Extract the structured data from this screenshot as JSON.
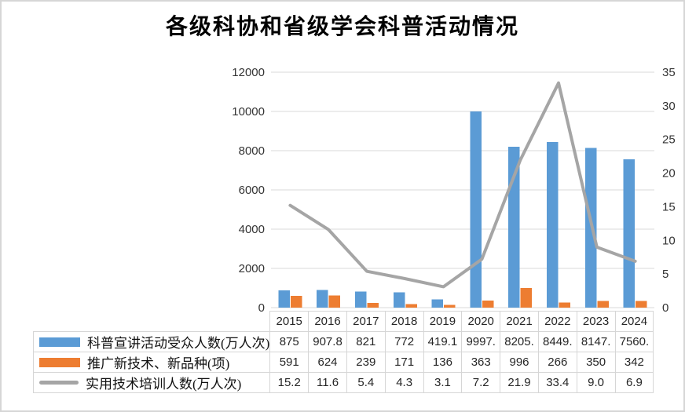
{
  "title": "各级科协和省级学会科普活动情况",
  "colors": {
    "bar1": "#5B9BD5",
    "bar2": "#ED7D31",
    "line": "#A5A5A5",
    "grid": "#D9D9D9",
    "axis_text": "#333333",
    "table_border": "#D6D6D6",
    "table_text": "#262626"
  },
  "chart_data": {
    "type": "combo (clustered bar + line)",
    "title": "各级科协和省级学会科普活动情况",
    "categories": [
      "2015",
      "2016",
      "2017",
      "2018",
      "2019",
      "2020",
      "2021",
      "2022",
      "2023",
      "2024"
    ],
    "series": [
      {
        "name": "科普宣讲活动受众人数(万人次)",
        "type": "bar",
        "axis": "left",
        "color": "#5B9BD5",
        "values": [
          875,
          907.8,
          821,
          772,
          419.1,
          9997,
          8205,
          8449,
          8147,
          7560
        ]
      },
      {
        "name": "推广新技术、新品种(项)",
        "type": "bar",
        "axis": "left",
        "color": "#ED7D31",
        "values": [
          591,
          624,
          239,
          171,
          136,
          363,
          996,
          266,
          350,
          342
        ]
      },
      {
        "name": "实用技术培训人数(万人次)",
        "type": "line",
        "axis": "right",
        "color": "#A5A5A5",
        "values": [
          15.2,
          11.6,
          5.4,
          4.3,
          3.1,
          7.2,
          21.9,
          33.4,
          9.0,
          6.9
        ]
      }
    ],
    "left_axis": {
      "min": 0,
      "max": 12000,
      "ticks": [
        0,
        2000,
        4000,
        6000,
        8000,
        10000,
        12000
      ]
    },
    "right_axis": {
      "min": 0,
      "max": 35,
      "ticks": [
        0,
        5,
        10,
        15,
        20,
        25,
        30,
        35
      ]
    },
    "grid": "horizontal only",
    "legend_position": "data-table keys at left of table rows"
  },
  "table": {
    "years": [
      "2015",
      "2016",
      "2017",
      "2018",
      "2019",
      "2020",
      "2021",
      "2022",
      "2023",
      "2024"
    ],
    "rows": [
      {
        "key": "bar-blue",
        "label": "科普宣讲活动受众人数(万人次)",
        "values": [
          "875",
          "907.8",
          "821",
          "772",
          "419.1",
          "9997.",
          "8205.",
          "8449.",
          "8147.",
          "7560."
        ]
      },
      {
        "key": "bar-orange",
        "label": "推广新技术、新品种(项)",
        "values": [
          "591",
          "624",
          "239",
          "171",
          "136",
          "363",
          "996",
          "266",
          "350",
          "342"
        ]
      },
      {
        "key": "line-gray",
        "label": "实用技术培训人数(万人次)",
        "values": [
          "15.2",
          "11.6",
          "5.4",
          "4.3",
          "3.1",
          "7.2",
          "21.9",
          "33.4",
          "9.0",
          "6.9"
        ]
      }
    ]
  }
}
